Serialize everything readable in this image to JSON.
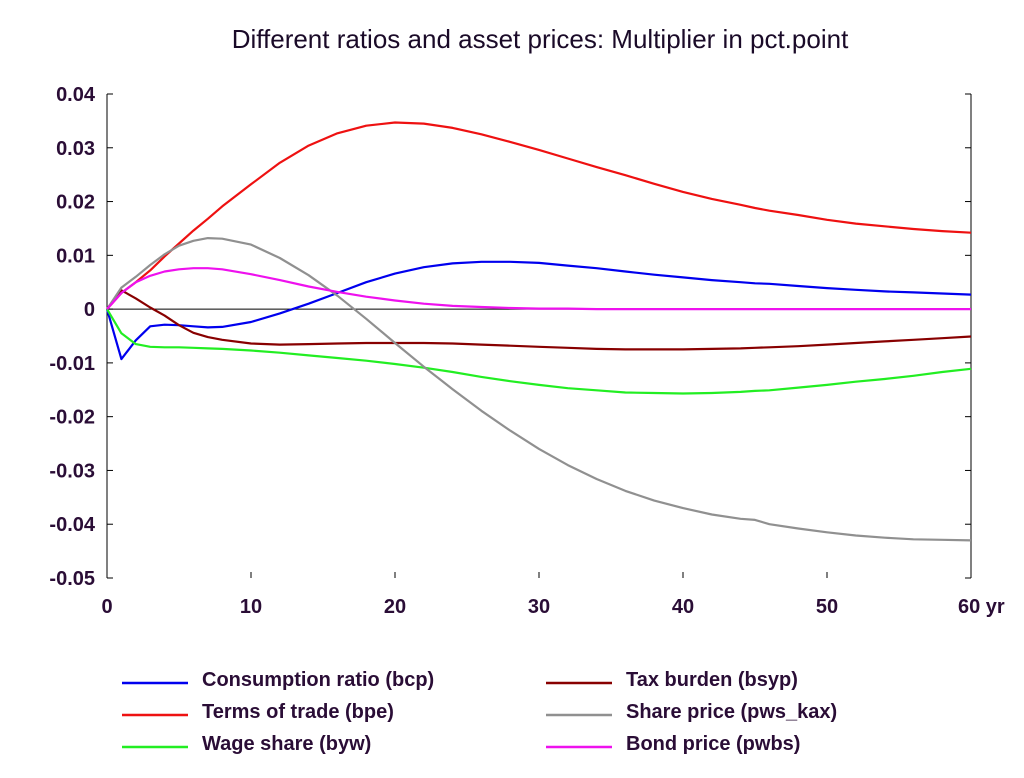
{
  "chart_data": {
    "type": "line",
    "title": "Different ratios and asset prices: Multiplier in pct.point",
    "xlabel": "",
    "ylabel": "",
    "xlim": [
      0,
      60
    ],
    "ylim": [
      -0.05,
      0.04
    ],
    "x_ticks": [
      0,
      10,
      20,
      30,
      40,
      50,
      60
    ],
    "x_tick_labels": [
      "0",
      "10",
      "20",
      "30",
      "40",
      "50",
      "60 yr"
    ],
    "y_ticks": [
      0.04,
      0.03,
      0.02,
      0.01,
      0,
      -0.01,
      -0.02,
      -0.03,
      -0.04,
      -0.05
    ],
    "y_tick_labels": [
      "0.04",
      "0.03",
      "0.02",
      "0.01",
      "0",
      "-0.01",
      "-0.02",
      "-0.03",
      "-0.04",
      "-0.05"
    ],
    "grid": false,
    "zero_line": true,
    "legend_position": "bottom",
    "x": [
      0,
      1,
      2,
      3,
      4,
      5,
      6,
      7,
      8,
      10,
      12,
      14,
      16,
      18,
      20,
      22,
      24,
      26,
      28,
      30,
      32,
      34,
      36,
      38,
      40,
      42,
      44,
      45,
      46,
      48,
      50,
      52,
      54,
      56,
      58,
      60
    ],
    "series": [
      {
        "name": "Consumption ratio (bcp)",
        "color": "#0000ee",
        "values": [
          0,
          -0.0093,
          -0.0058,
          -0.0032,
          -0.0029,
          -0.003,
          -0.0032,
          -0.0034,
          -0.0033,
          -0.0024,
          -0.0008,
          0.001,
          0.003,
          0.005,
          0.0066,
          0.0078,
          0.0085,
          0.0088,
          0.0088,
          0.0086,
          0.0081,
          0.0076,
          0.007,
          0.0064,
          0.0059,
          0.0054,
          0.005,
          0.0048,
          0.0047,
          0.0043,
          0.0039,
          0.0036,
          0.0033,
          0.0031,
          0.0029,
          0.0027
        ]
      },
      {
        "name": "Terms of trade (bpe)",
        "color": "#ee1111",
        "values": [
          0,
          0.003,
          0.005,
          0.0072,
          0.0098,
          0.0122,
          0.0146,
          0.0168,
          0.0191,
          0.0232,
          0.0272,
          0.0304,
          0.0327,
          0.0341,
          0.0347,
          0.0345,
          0.0337,
          0.0325,
          0.0311,
          0.0296,
          0.028,
          0.0264,
          0.0249,
          0.0233,
          0.0218,
          0.0205,
          0.0194,
          0.0188,
          0.0183,
          0.0175,
          0.0166,
          0.0159,
          0.0154,
          0.0149,
          0.0145,
          0.0142
        ]
      },
      {
        "name": "Wage share (byw)",
        "color": "#22ee22",
        "values": [
          0,
          -0.0045,
          -0.0065,
          -0.007,
          -0.0071,
          -0.0071,
          -0.0072,
          -0.0073,
          -0.0074,
          -0.0077,
          -0.0081,
          -0.0086,
          -0.0091,
          -0.0096,
          -0.0102,
          -0.0109,
          -0.0117,
          -0.0126,
          -0.0134,
          -0.0141,
          -0.0147,
          -0.0151,
          -0.0155,
          -0.0156,
          -0.0157,
          -0.0156,
          -0.0154,
          -0.0152,
          -0.0151,
          -0.0146,
          -0.0141,
          -0.0135,
          -0.013,
          -0.0124,
          -0.0117,
          -0.0111
        ]
      },
      {
        "name": "Tax burden (bsyp)",
        "color": "#880000",
        "values": [
          0,
          0.0035,
          0.002,
          0.0003,
          -0.0012,
          -0.003,
          -0.0044,
          -0.0052,
          -0.0057,
          -0.0064,
          -0.0066,
          -0.0065,
          -0.0064,
          -0.0063,
          -0.0063,
          -0.0063,
          -0.0064,
          -0.0066,
          -0.0068,
          -0.007,
          -0.0072,
          -0.0074,
          -0.0075,
          -0.0075,
          -0.0075,
          -0.0074,
          -0.0073,
          -0.0072,
          -0.0071,
          -0.0069,
          -0.0066,
          -0.0063,
          -0.006,
          -0.0057,
          -0.0054,
          -0.0051
        ]
      },
      {
        "name": "Share price (pws_kax)",
        "color": "#909090",
        "values": [
          0,
          0.004,
          0.006,
          0.0082,
          0.0102,
          0.0118,
          0.0127,
          0.0132,
          0.0131,
          0.012,
          0.0095,
          0.0063,
          0.0025,
          -0.0018,
          -0.0063,
          -0.0107,
          -0.0149,
          -0.0189,
          -0.0226,
          -0.026,
          -0.029,
          -0.0316,
          -0.0338,
          -0.0356,
          -0.037,
          -0.0382,
          -0.039,
          -0.0392,
          -0.04,
          -0.0408,
          -0.0415,
          -0.0421,
          -0.0425,
          -0.0428,
          -0.0429,
          -0.043
        ]
      },
      {
        "name": "Bond price (pwbs)",
        "color": "#ee11ee",
        "values": [
          0,
          0.003,
          0.005,
          0.0062,
          0.007,
          0.0074,
          0.0076,
          0.0076,
          0.0074,
          0.0065,
          0.0054,
          0.0042,
          0.0032,
          0.0023,
          0.0016,
          0.001,
          0.0006,
          0.0004,
          0.0002,
          0.0001,
          0.0001,
          0.0,
          0.0,
          0.0,
          0.0,
          0.0,
          0.0,
          0.0,
          0.0,
          0.0,
          0.0,
          0.0,
          0.0,
          0.0,
          0.0,
          0.0
        ]
      }
    ]
  }
}
